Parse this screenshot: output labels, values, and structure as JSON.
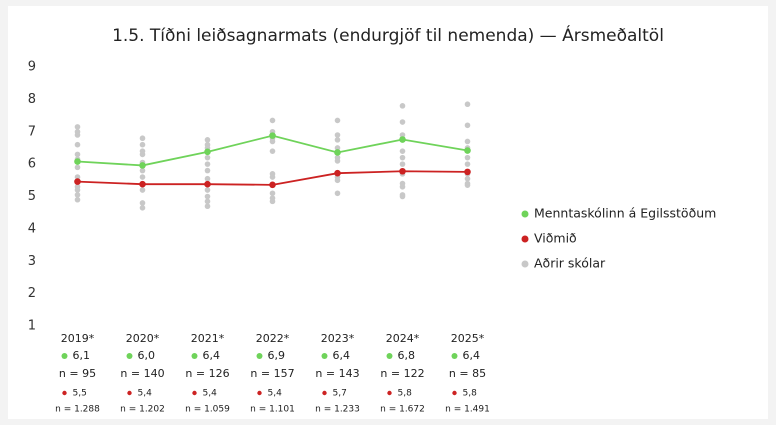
{
  "chart_data": {
    "type": "line",
    "title": "1.5. Tíðni leiðsagnarmats (endurgjöf til nemenda) — Ársmeðaltöl",
    "categories": [
      "2019*",
      "2020*",
      "2021*",
      "2022*",
      "2023*",
      "2024*",
      "2025*"
    ],
    "ylim": [
      1,
      9
    ],
    "yticks": [
      1,
      2,
      3,
      4,
      5,
      6,
      7,
      8,
      9
    ],
    "series": [
      {
        "name": "Menntaskólinn á Egilsstöðum",
        "color": "#6fd35a",
        "values": [
          6.08,
          5.96,
          6.38,
          6.88,
          6.36,
          6.76,
          6.42
        ],
        "value_labels": [
          "6,1",
          "6,0",
          "6,4",
          "6,9",
          "6,4",
          "6,8",
          "6,4"
        ],
        "n_labels": [
          "n = 95",
          "n = 140",
          "n = 126",
          "n = 157",
          "n = 143",
          "n = 122",
          "n = 85"
        ]
      },
      {
        "name": "Viðmið",
        "color": "#cc2222",
        "values": [
          5.46,
          5.38,
          5.38,
          5.36,
          5.72,
          5.78,
          5.76
        ],
        "value_labels": [
          "5,5",
          "5,4",
          "5,4",
          "5,4",
          "5,7",
          "5,8",
          "5,8"
        ],
        "n_labels": [
          "n = 1.288",
          "n = 1.202",
          "n = 1.059",
          "n = 1.101",
          "n = 1.233",
          "n = 1.672",
          "n = 1.491"
        ]
      },
      {
        "name": "Aðrir skólar",
        "color": "#c8c8c8",
        "type": "scatter",
        "values": [
          [
            7.15,
            7.0,
            6.9,
            6.6,
            6.3,
            6.15,
            5.9,
            5.6,
            5.3,
            5.2,
            5.05,
            4.9
          ],
          [
            6.8,
            6.6,
            6.4,
            6.3,
            6.05,
            5.8,
            5.6,
            5.2,
            4.8,
            4.65
          ],
          [
            6.75,
            6.6,
            6.5,
            6.2,
            6.0,
            5.8,
            5.55,
            5.2,
            5.0,
            4.85,
            4.7
          ],
          [
            7.35,
            7.0,
            6.8,
            6.7,
            6.4,
            5.7,
            5.6,
            5.1,
            4.95,
            4.85
          ],
          [
            7.35,
            6.9,
            6.75,
            6.5,
            6.2,
            6.1,
            5.6,
            5.5,
            5.1
          ],
          [
            7.8,
            7.3,
            6.9,
            6.4,
            6.2,
            6.0,
            5.7,
            5.4,
            5.3,
            5.05,
            5.0
          ],
          [
            7.85,
            7.2,
            6.7,
            6.5,
            6.2,
            6.0,
            5.7,
            5.55,
            5.4,
            5.35
          ]
        ]
      }
    ]
  }
}
